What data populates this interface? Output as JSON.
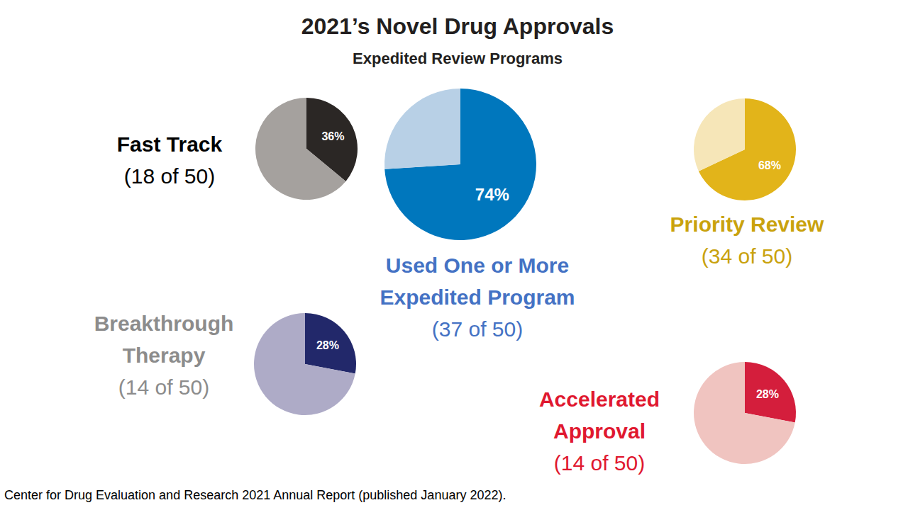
{
  "title": "2021’s Novel Drug Approvals",
  "subtitle": "Expedited Review Programs",
  "source": "Center for Drug Evaluation and Research 2021 Annual Report (published January 2022).",
  "chart_data": [
    {
      "type": "pie",
      "title": "Fast Track",
      "subtitle": "(18 of 50)",
      "values": [
        36,
        64
      ],
      "value_labels": [
        "36%",
        null
      ],
      "colors": [
        "#2b2725",
        "#a5a19e"
      ],
      "color": "#000000"
    },
    {
      "type": "pie",
      "title": "Used One or More Expedited Program",
      "subtitle": "(37 of 50)",
      "values": [
        74,
        26
      ],
      "value_labels": [
        "74%",
        null
      ],
      "colors": [
        "#0077bd",
        "#b8d0e6"
      ],
      "color": "#4472c4"
    },
    {
      "type": "pie",
      "title": "Priority Review",
      "subtitle": "(34 of 50)",
      "values": [
        68,
        32
      ],
      "value_labels": [
        "68%",
        null
      ],
      "colors": [
        "#e2b41a",
        "#f6e6b8"
      ],
      "color": "#c9a20e"
    },
    {
      "type": "pie",
      "title": "Breakthrough Therapy",
      "subtitle": "(14 of 50)",
      "values": [
        28,
        72
      ],
      "value_labels": [
        "28%",
        null
      ],
      "colors": [
        "#22286a",
        "#aeabc7"
      ],
      "color": "#8c8c8c"
    },
    {
      "type": "pie",
      "title": "Accelerated Approval",
      "subtitle": "(14 of 50)",
      "values": [
        28,
        72
      ],
      "value_labels": [
        "28%",
        null
      ],
      "colors": [
        "#d41e3c",
        "#f0c4c0"
      ],
      "color": "#e0182f"
    }
  ]
}
